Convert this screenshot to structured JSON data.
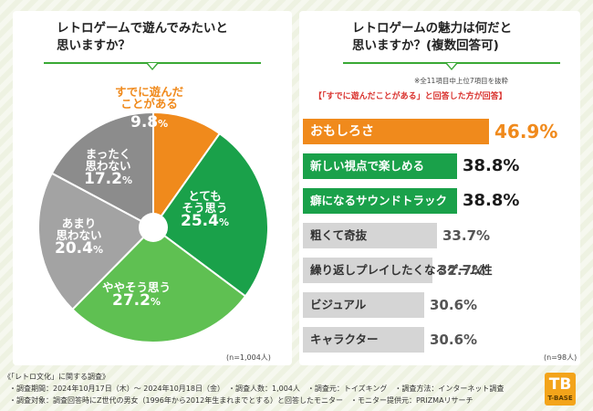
{
  "chart_data": [
    {
      "type": "pie",
      "title": "レトロゲームで遊んでみたいと思いますか？",
      "sample": "(n=1,004人)",
      "unit": "%",
      "slices": [
        {
          "name": "すでに遊んだことがある",
          "value": 9.8,
          "color": "#f08a1c"
        },
        {
          "name": "とてもそう思う",
          "value": 25.4,
          "color": "#1aa14a"
        },
        {
          "name": "ややそう思う",
          "value": 27.2,
          "color": "#5fc052"
        },
        {
          "name": "あまり思わない",
          "value": 20.4,
          "color": "#a3a3a3"
        },
        {
          "name": "まったく思わない",
          "value": 17.2,
          "color": "#8c8c8c"
        }
      ]
    },
    {
      "type": "bar",
      "orientation": "horizontal",
      "title": "レトロゲームの魅力は何だと思いますか？(複数回答可)",
      "note": "※全11項目中上位7項目を抜粋",
      "subtitle": "【「すでに遊んだことがある」と回答した方が回答】",
      "sample": "(n=98人)",
      "unit": "%",
      "xlim": [
        0,
        50
      ],
      "categories": [
        "おもしろさ",
        "新しい視点で楽しめる",
        "癖になるサウンドトラック",
        "粗くて奇抜",
        "繰り返しプレイしたくなるゲーム性",
        "ビジュアル",
        "キャラクター"
      ],
      "values": [
        46.9,
        38.8,
        38.8,
        33.7,
        32.7,
        30.6,
        30.6
      ],
      "colors": [
        "#f08a1c",
        "#1aa14a",
        "#1aa14a",
        "#d5d5d5",
        "#d5d5d5",
        "#d5d5d5",
        "#d5d5d5"
      ],
      "value_colors": [
        "#f08a1c",
        "#1a1a1a",
        "#1a1a1a",
        "#555555",
        "#555555",
        "#555555",
        "#555555"
      ],
      "label_colors": [
        "#ffffff",
        "#ffffff",
        "#ffffff",
        "#333333",
        "#333333",
        "#333333",
        "#333333"
      ]
    }
  ],
  "left": {
    "title_line1": "レトロゲームで遊んでみたいと",
    "title_line2": "思いますか？"
  },
  "right": {
    "title_line1": "レトロゲームの魅力は何だと",
    "title_line2": "思いますか？(複数回答可)"
  },
  "pie_labels": [
    {
      "name1": "すでに遊んだ",
      "name2": "ことがある",
      "value": "9.8",
      "unit": "%"
    },
    {
      "name1": "とても",
      "name2": "そう思う",
      "value": "25.4",
      "unit": "%"
    },
    {
      "name1": "ややそう思う",
      "name2": "",
      "value": "27.2",
      "unit": "%"
    },
    {
      "name1": "あまり",
      "name2": "思わない",
      "value": "20.4",
      "unit": "%"
    },
    {
      "name1": "まったく",
      "name2": "思わない",
      "value": "17.2",
      "unit": "%"
    }
  ],
  "footer": {
    "line1": "《「レトロ文化」に関する調査》",
    "line2": "・調査期間：2024年10月17日（木）～ 2024年10月18日（金）　・調査人数：1,004人　・調査元：トイズキング　・調査方法：インターネット調査",
    "line3": "・調査対象：調査回答時にZ世代の男女（1996年から2012年生まれまでとする）と回答したモニター　・モニター提供元：PRIZMAリサーチ"
  },
  "logo": {
    "mark": "TB",
    "text": "T-BASE"
  }
}
